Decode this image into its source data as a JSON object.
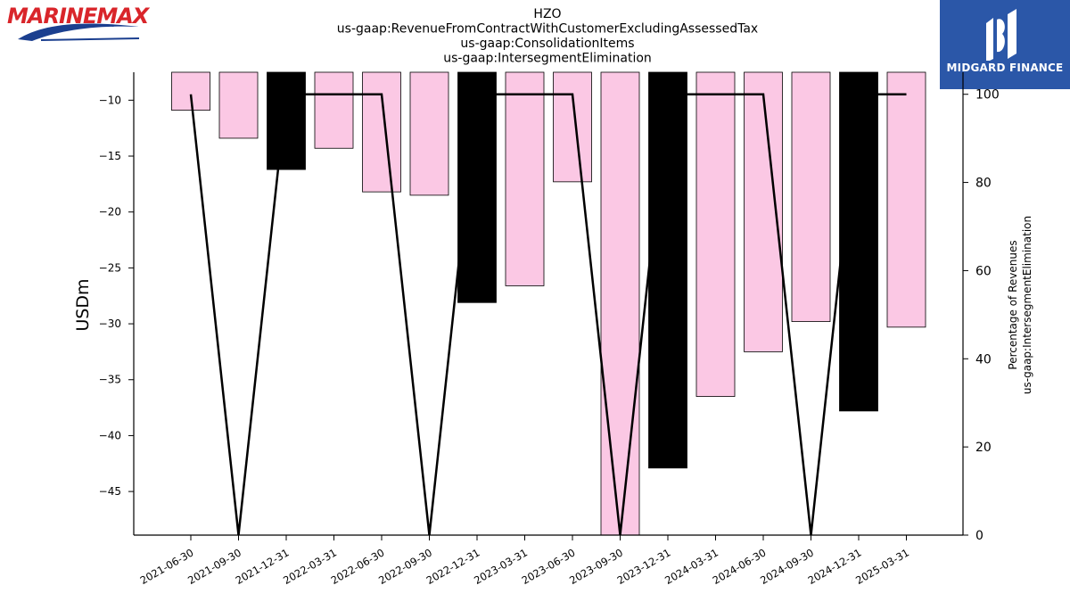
{
  "logos": {
    "left_text": "MARINEMAX",
    "left_icon": "marinemax-wave-logo",
    "right_text": "MIDGARD FINANCE",
    "right_icon": "midgard-finance-logo",
    "right_bg": "#2b57a8"
  },
  "chart_data": {
    "type": "bar",
    "title_lines": [
      "HZO",
      "us-gaap:RevenueFromContractWithCustomerExcludingAssessedTax",
      "us-gaap:ConsolidationItems",
      "us-gaap:IntersegmentElimination"
    ],
    "ylabel": "USDm",
    "ylabel_right": [
      "Percentage of Revenues",
      "us-gaap:IntersegmentElimination"
    ],
    "categories": [
      "2021-06-30",
      "2021-09-30",
      "2021-12-31",
      "2022-03-31",
      "2022-06-30",
      "2022-09-30",
      "2022-12-31",
      "2023-03-31",
      "2023-06-30",
      "2023-09-30",
      "2023-12-31",
      "2024-03-31",
      "2024-06-30",
      "2024-09-30",
      "2024-12-31",
      "2025-03-31"
    ],
    "values": [
      -10.9,
      -13.4,
      -16.2,
      -14.3,
      -18.2,
      -18.5,
      -28.1,
      -26.6,
      -17.3,
      -48.9,
      -42.9,
      -36.5,
      -32.5,
      -29.8,
      -37.8,
      -30.3
    ],
    "bar_colors": [
      "#fbc8e4",
      "#fbc8e4",
      "#000000",
      "#fbc8e4",
      "#fbc8e4",
      "#fbc8e4",
      "#000000",
      "#fbc8e4",
      "#fbc8e4",
      "#fbc8e4",
      "#000000",
      "#fbc8e4",
      "#fbc8e4",
      "#fbc8e4",
      "#000000",
      "#fbc8e4"
    ],
    "ylim": [
      -48.9,
      -7.5
    ],
    "yticks": [
      -10,
      -15,
      -20,
      -25,
      -30,
      -35,
      -40,
      -45
    ],
    "line_series": {
      "name": "",
      "axis": "right",
      "values": [
        100,
        0,
        100,
        100,
        100,
        0,
        100,
        100,
        100,
        0,
        100,
        100,
        100,
        0,
        100,
        100
      ],
      "color": "#000000"
    },
    "ylim_right": [
      0,
      105
    ],
    "yticks_right": [
      0,
      20,
      40,
      60,
      80,
      100
    ],
    "grid": false,
    "legend": "none"
  }
}
